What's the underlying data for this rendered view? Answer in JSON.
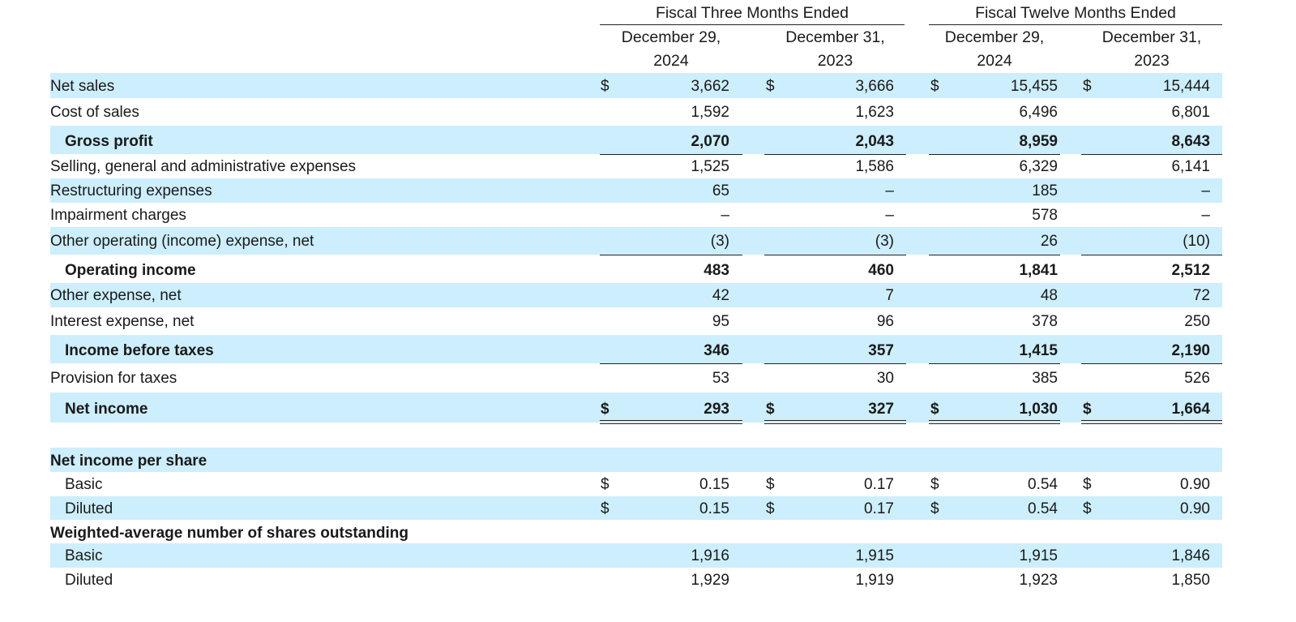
{
  "header": {
    "group_three": "Fiscal Three Months Ended",
    "group_twelve": "Fiscal Twelve Months Ended",
    "columns": [
      {
        "line1": "December 29,",
        "line2": "2024"
      },
      {
        "line1": "December 31,",
        "line2": "2023"
      },
      {
        "line1": "December 29,",
        "line2": "2024"
      },
      {
        "line1": "December 31,",
        "line2": "2023"
      }
    ]
  },
  "rows": [
    {
      "label": "Net sales",
      "values": [
        "3,662",
        "3,666",
        "15,455",
        "15,444"
      ],
      "currency": "$"
    },
    {
      "label": "Cost of sales",
      "values": [
        "1,592",
        "1,623",
        "6,496",
        "6,801"
      ]
    },
    {
      "label": "Gross profit",
      "values": [
        "2,070",
        "2,043",
        "8,959",
        "8,643"
      ]
    },
    {
      "label": "Selling, general and administrative expenses",
      "values": [
        "1,525",
        "1,586",
        "6,329",
        "6,141"
      ]
    },
    {
      "label": "Restructuring expenses",
      "values": [
        "65",
        "–",
        "185",
        "–"
      ]
    },
    {
      "label": "Impairment charges",
      "values": [
        "–",
        "–",
        "578",
        "–"
      ]
    },
    {
      "label": "Other operating (income) expense, net",
      "values": [
        "(3)",
        "(3)",
        "26",
        "(10)"
      ]
    },
    {
      "label": "Operating income",
      "values": [
        "483",
        "460",
        "1,841",
        "2,512"
      ]
    },
    {
      "label": "Other expense, net",
      "values": [
        "42",
        "7",
        "48",
        "72"
      ]
    },
    {
      "label": "Interest expense, net",
      "values": [
        "95",
        "96",
        "378",
        "250"
      ]
    },
    {
      "label": "Income before taxes",
      "values": [
        "346",
        "357",
        "1,415",
        "2,190"
      ]
    },
    {
      "label": "Provision for taxes",
      "values": [
        "53",
        "30",
        "385",
        "526"
      ]
    },
    {
      "label": "Net income",
      "values": [
        "293",
        "327",
        "1,030",
        "1,664"
      ],
      "currency": "$"
    },
    {
      "label": "Net income per share",
      "values": []
    },
    {
      "label": "Basic",
      "values": [
        "0.15",
        "0.17",
        "0.54",
        "0.90"
      ],
      "currency": "$"
    },
    {
      "label": "Diluted",
      "values": [
        "0.15",
        "0.17",
        "0.54",
        "0.90"
      ],
      "currency": "$"
    },
    {
      "label": "Weighted-average number of shares outstanding",
      "values": []
    },
    {
      "label": "Basic",
      "values": [
        "1,916",
        "1,915",
        "1,915",
        "1,846"
      ]
    },
    {
      "label": "Diluted",
      "values": [
        "1,929",
        "1,919",
        "1,923",
        "1,850"
      ]
    }
  ]
}
